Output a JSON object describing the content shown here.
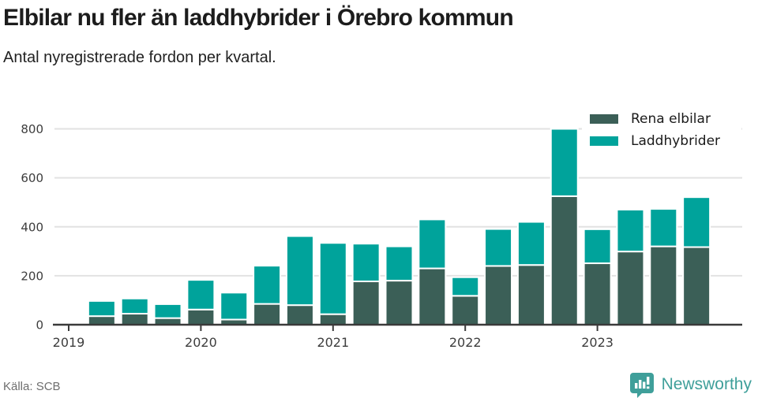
{
  "header": {
    "title": "Elbilar nu fler än laddhybrider i Örebro kommun",
    "subtitle": "Antal nyregistrerade fordon per kvartal."
  },
  "legend": {
    "items": [
      {
        "label": "Rena elbilar",
        "color": "#3b5f57"
      },
      {
        "label": "Laddhybrider",
        "color": "#00a39b"
      }
    ]
  },
  "footer": {
    "source": "Källa: SCB",
    "brand": "Newsworthy"
  },
  "colors": {
    "rena_elbilar": "#3b5f57",
    "laddhybrider": "#00a39b",
    "gridline": "#e2e2e2",
    "axis_line": "#3a3a3a",
    "axis_text": "#3d3d3d",
    "brand_teal": "#3f9f9a"
  },
  "chart_data": {
    "type": "bar",
    "stacked": true,
    "title": "Elbilar nu fler än laddhybrider i Örebro kommun",
    "subtitle": "Antal nyregistrerade fordon per kvartal.",
    "categories": [
      "2019 Q1",
      "2019 Q2",
      "2019 Q3",
      "2019 Q4",
      "2020 Q1",
      "2020 Q2",
      "2020 Q3",
      "2020 Q4",
      "2021 Q1",
      "2021 Q2",
      "2021 Q3",
      "2021 Q4",
      "2022 Q1",
      "2022 Q2",
      "2022 Q3",
      "2022 Q4",
      "2023 Q1",
      "2023 Q2",
      "2023 Q3",
      "2023 Q4"
    ],
    "series": [
      {
        "name": "Rena elbilar",
        "color": "#3b5f57",
        "values": [
          0,
          35,
          45,
          27,
          62,
          21,
          85,
          80,
          43,
          177,
          180,
          230,
          118,
          240,
          244,
          525,
          251,
          299,
          320,
          317
        ]
      },
      {
        "name": "Laddhybrider",
        "color": "#00a39b",
        "values": [
          0,
          62,
          62,
          57,
          121,
          110,
          156,
          282,
          291,
          154,
          140,
          200,
          76,
          151,
          176,
          275,
          139,
          171,
          153,
          204
        ]
      }
    ],
    "xlabel": "",
    "ylabel": "",
    "ylim": [
      0,
      800
    ],
    "y_ticks": [
      0,
      200,
      400,
      600,
      800
    ],
    "x_tick_labels": [
      "2019",
      "2020",
      "2021",
      "2022",
      "2023"
    ],
    "x_tick_indices": [
      0,
      4,
      8,
      12,
      16
    ],
    "grid": true,
    "legend_position": "top-right"
  }
}
